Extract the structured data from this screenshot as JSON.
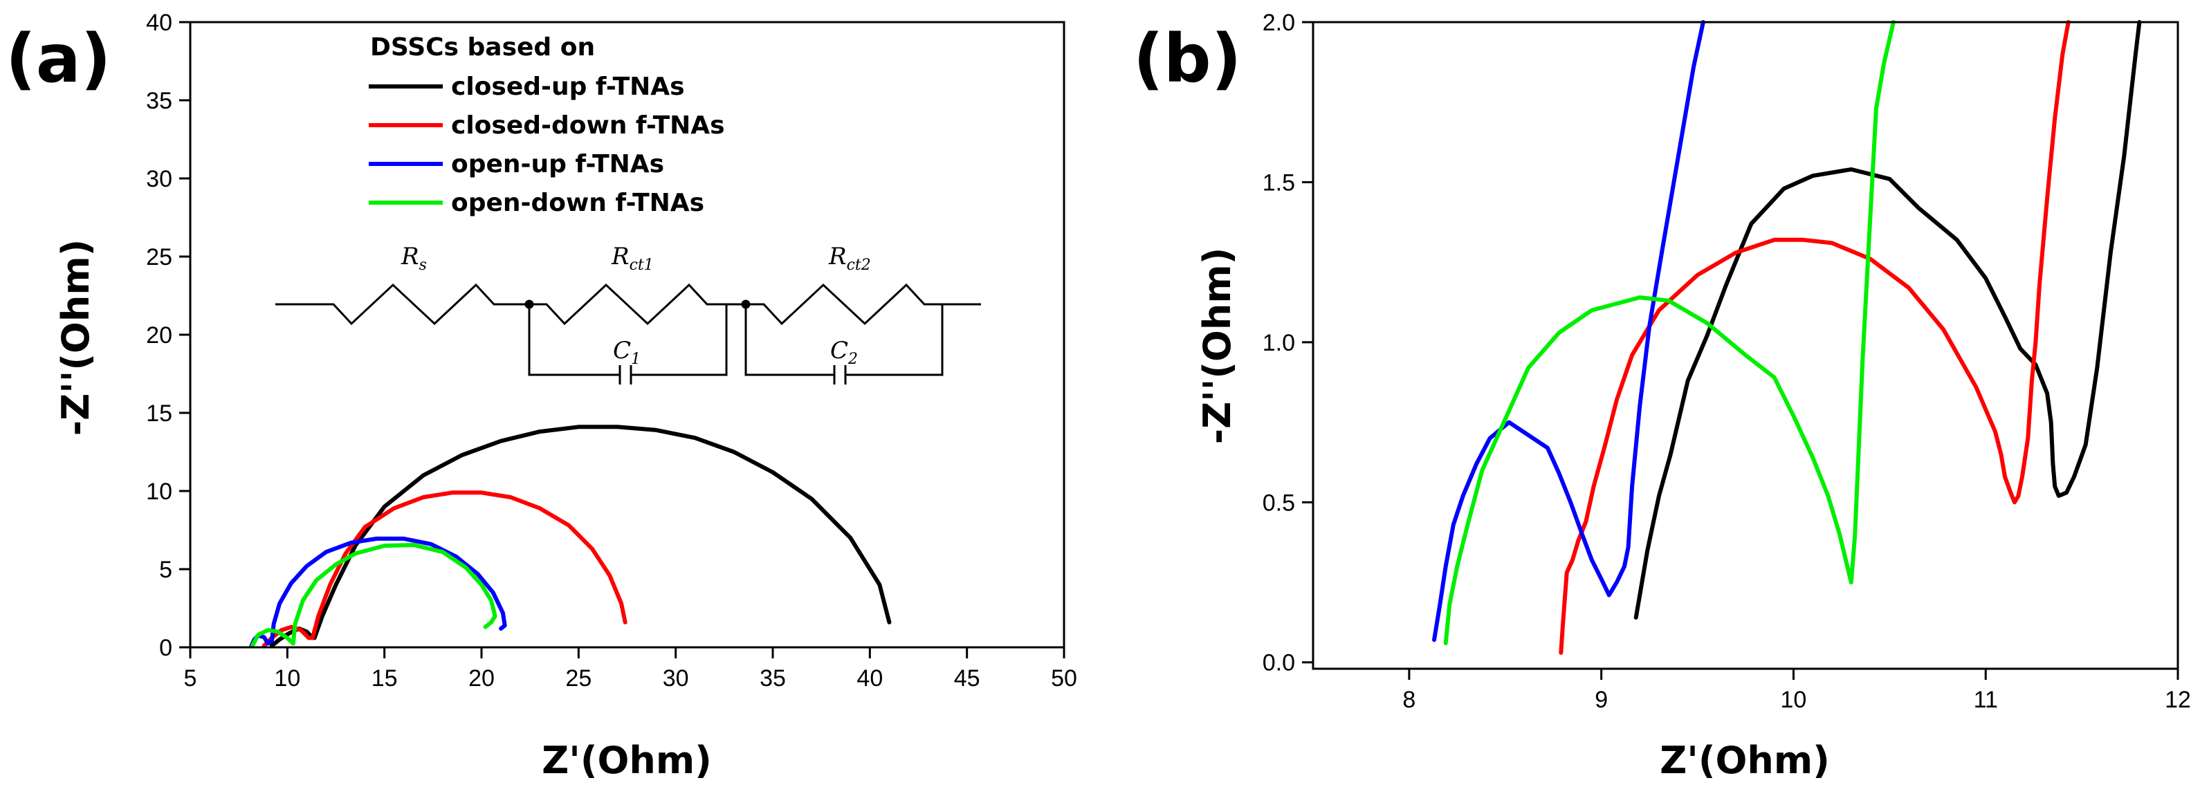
{
  "figure": {
    "panel_a_label": "(a)",
    "panel_b_label": "(b)"
  },
  "colors": {
    "closed_up": "#000000",
    "closed_down": "#ff0000",
    "open_up": "#0000ff",
    "open_down": "#00ee00"
  },
  "legend": {
    "title": "DSSCs based on",
    "entries": [
      "closed-up f-TNAs",
      "closed-down f-TNAs",
      "open-up f-TNAs",
      "open-down f-TNAs"
    ]
  },
  "circuit": {
    "rs": "R",
    "rs_sub": "s",
    "rct1": "R",
    "rct1_sub": "ct1",
    "rct2": "R",
    "rct2_sub": "ct2",
    "c1": "C",
    "c1_sub": "1",
    "c2": "C",
    "c2_sub": "2"
  },
  "chart_data": [
    {
      "type": "line",
      "panel": "(a)",
      "xlabel": "Z'(Ohm)",
      "ylabel": "-Z''(Ohm)",
      "xlim": [
        5,
        50
      ],
      "ylim": [
        0,
        40
      ],
      "xticks": [
        "5",
        "10",
        "15",
        "20",
        "25",
        "30",
        "35",
        "40",
        "45",
        "50"
      ],
      "yticks": [
        "0",
        "5",
        "10",
        "15",
        "20",
        "25",
        "30",
        "35",
        "40"
      ],
      "series": [
        {
          "name": "closed-up f-TNAs",
          "x": [
            9.2,
            9.6,
            10.1,
            10.6,
            11.0,
            11.3,
            11.4,
            11.8,
            12.5,
            13.5,
            15,
            17,
            19,
            21,
            23,
            25,
            27,
            29,
            31,
            33,
            35,
            37,
            39,
            40.5,
            41.0
          ],
          "y": [
            0.1,
            0.5,
            0.9,
            1.2,
            1.0,
            0.6,
            0.6,
            2,
            4,
            6.5,
            9,
            11,
            12.3,
            13.2,
            13.8,
            14.1,
            14.1,
            13.9,
            13.4,
            12.5,
            11.2,
            9.5,
            7,
            4,
            1.6
          ]
        },
        {
          "name": "closed-down f-TNAs",
          "x": [
            8.8,
            9.2,
            9.7,
            10.2,
            10.7,
            11.1,
            11.3,
            11.6,
            12.2,
            13,
            14,
            15.5,
            17,
            18.5,
            20,
            21.5,
            23,
            24.5,
            25.7,
            26.6,
            27.2,
            27.4
          ],
          "y": [
            0.1,
            0.6,
            1.1,
            1.3,
            1.1,
            0.6,
            0.6,
            2,
            4,
            6,
            7.7,
            8.9,
            9.6,
            9.9,
            9.9,
            9.6,
            8.9,
            7.8,
            6.3,
            4.6,
            2.8,
            1.6
          ]
        },
        {
          "name": "open-up f-TNAs",
          "x": [
            8.15,
            8.3,
            8.5,
            8.8,
            9.0,
            9.2,
            9.3,
            9.6,
            10.2,
            11,
            12,
            13.3,
            14.6,
            16,
            17.4,
            18.7,
            19.8,
            20.6,
            21.1,
            21.2,
            21.0
          ],
          "y": [
            0.1,
            0.5,
            0.75,
            0.65,
            0.25,
            0.4,
            1.5,
            2.8,
            4.1,
            5.2,
            6.1,
            6.7,
            6.95,
            6.95,
            6.6,
            5.8,
            4.7,
            3.5,
            2.2,
            1.4,
            1.2
          ]
        },
        {
          "name": "open-down f-TNAs",
          "x": [
            8.2,
            8.5,
            9.0,
            9.5,
            10.0,
            10.3,
            10.4,
            10.8,
            11.5,
            12.5,
            13.5,
            15,
            16.5,
            18,
            19.2,
            20,
            20.5,
            20.7,
            20.5,
            20.2
          ],
          "y": [
            0.1,
            0.8,
            1.1,
            1.0,
            0.6,
            0.25,
            1.5,
            3,
            4.3,
            5.3,
            6,
            6.5,
            6.55,
            6.1,
            5.1,
            4,
            3,
            2,
            1.6,
            1.3
          ]
        }
      ]
    },
    {
      "type": "line",
      "panel": "(b)",
      "xlabel": "Z'(Ohm)",
      "ylabel": "-Z''(Ohm)",
      "xlim": [
        7.5,
        12
      ],
      "ylim": [
        -0.02,
        2.0
      ],
      "xticks": [
        "8",
        "9",
        "10",
        "11",
        "12"
      ],
      "yticks": [
        "0.0",
        "0.5",
        "1.0",
        "1.5",
        "2.0"
      ],
      "series": [
        {
          "name": "closed-up f-TNAs",
          "x": [
            9.18,
            9.24,
            9.3,
            9.36,
            9.45,
            9.55,
            9.65,
            9.78,
            9.95,
            10.1,
            10.3,
            10.5,
            10.65,
            10.85,
            11.0,
            11.1,
            11.18,
            11.26,
            11.32,
            11.34,
            11.35,
            11.36,
            11.38,
            11.42,
            11.46,
            11.52,
            11.58,
            11.65,
            11.72,
            11.78,
            11.8
          ],
          "y": [
            0.14,
            0.35,
            0.52,
            0.65,
            0.88,
            1.02,
            1.18,
            1.37,
            1.48,
            1.52,
            1.54,
            1.51,
            1.42,
            1.32,
            1.2,
            1.08,
            0.98,
            0.93,
            0.84,
            0.75,
            0.62,
            0.55,
            0.52,
            0.53,
            0.58,
            0.68,
            0.92,
            1.28,
            1.58,
            1.9,
            2.0
          ]
        },
        {
          "name": "closed-down f-TNAs",
          "x": [
            8.79,
            8.8,
            8.82,
            8.85,
            8.88,
            8.92,
            8.96,
            9.02,
            9.08,
            9.16,
            9.3,
            9.5,
            9.7,
            9.9,
            10.05,
            10.2,
            10.4,
            10.6,
            10.78,
            10.95,
            11.05,
            11.08,
            11.1,
            11.13,
            11.15,
            11.17,
            11.19,
            11.22,
            11.24,
            11.26,
            11.28,
            11.32,
            11.36,
            11.4,
            11.43
          ],
          "y": [
            0.03,
            0.12,
            0.28,
            0.32,
            0.38,
            0.44,
            0.55,
            0.68,
            0.82,
            0.96,
            1.1,
            1.21,
            1.28,
            1.32,
            1.32,
            1.31,
            1.26,
            1.17,
            1.04,
            0.86,
            0.72,
            0.65,
            0.58,
            0.53,
            0.5,
            0.52,
            0.58,
            0.7,
            0.88,
            1.0,
            1.18,
            1.45,
            1.7,
            1.9,
            2.0
          ]
        },
        {
          "name": "open-up f-TNAs",
          "x": [
            8.13,
            8.16,
            8.19,
            8.23,
            8.28,
            8.35,
            8.42,
            8.52,
            8.62,
            8.72,
            8.78,
            8.84,
            8.9,
            8.95,
            9.0,
            9.04,
            9.08,
            9.12,
            9.14,
            9.16,
            9.2,
            9.25,
            9.32,
            9.4,
            9.48,
            9.53
          ],
          "y": [
            0.07,
            0.18,
            0.3,
            0.43,
            0.52,
            0.62,
            0.7,
            0.75,
            0.71,
            0.67,
            0.59,
            0.5,
            0.4,
            0.32,
            0.26,
            0.21,
            0.25,
            0.3,
            0.36,
            0.55,
            0.8,
            1.05,
            1.3,
            1.58,
            1.86,
            2.0
          ]
        },
        {
          "name": "open-down f-TNAs",
          "x": [
            8.19,
            8.21,
            8.25,
            8.3,
            8.38,
            8.5,
            8.62,
            8.78,
            8.95,
            9.2,
            9.35,
            9.55,
            9.75,
            9.9,
            10.0,
            10.1,
            10.18,
            10.24,
            10.28,
            10.3,
            10.32,
            10.36,
            10.4,
            10.43,
            10.47,
            10.52
          ],
          "y": [
            0.06,
            0.18,
            0.3,
            0.42,
            0.6,
            0.76,
            0.92,
            1.03,
            1.1,
            1.14,
            1.13,
            1.06,
            0.96,
            0.89,
            0.77,
            0.64,
            0.52,
            0.4,
            0.3,
            0.25,
            0.4,
            0.95,
            1.4,
            1.73,
            1.87,
            2.0
          ]
        }
      ]
    }
  ]
}
